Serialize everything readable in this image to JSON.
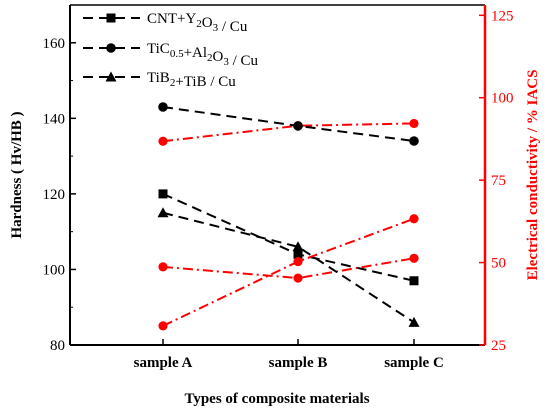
{
  "chart_data": {
    "type": "line",
    "categories": [
      "sample A",
      "sample B",
      "sample C"
    ],
    "xlabel": "Types of composite materials",
    "ylabel_left": "Hardness ( Hv/HB )",
    "ylabel_right": "Electrical conductivity / % IACS",
    "ylim_left": [
      80,
      170
    ],
    "yticks_left": [
      80,
      100,
      120,
      140,
      160
    ],
    "ylim_right": [
      25,
      128.125
    ],
    "yticks_right": [
      25,
      50,
      75,
      100,
      125
    ],
    "grid": false,
    "legend_position": "top-left",
    "colors": {
      "hardness": "#000000",
      "conductivity": "#ff0000",
      "right_axis": "#ff0000"
    },
    "series": [
      {
        "name": "CNT+Y2O3 / Cu",
        "legend_parts": [
          [
            "CNT+Y",
            ""
          ],
          [
            "2",
            "sub"
          ],
          [
            "O",
            ""
          ],
          [
            "3",
            "sub"
          ],
          [
            " / Cu",
            ""
          ]
        ],
        "marker": "square",
        "hardness": [
          120,
          104,
          97
        ],
        "conductivity": [
          86.8,
          91.5,
          92.2
        ]
      },
      {
        "name": "TiC0.5+Al2O3 / Cu",
        "legend_parts": [
          [
            "TiC",
            ""
          ],
          [
            "0.5",
            "sub"
          ],
          [
            "+Al",
            ""
          ],
          [
            "2",
            "sub"
          ],
          [
            "O",
            ""
          ],
          [
            "3",
            "sub"
          ],
          [
            " / Cu",
            ""
          ]
        ],
        "marker": "circle",
        "hardness": [
          143,
          138,
          134
        ],
        "conductivity": [
          48.7,
          45.3,
          51.3
        ]
      },
      {
        "name": "TiB2+TiB / Cu",
        "legend_parts": [
          [
            "TiB",
            ""
          ],
          [
            "2",
            "sub"
          ],
          [
            "+TiB / Cu",
            ""
          ]
        ],
        "marker": "triangle",
        "hardness": [
          115,
          106,
          86
        ],
        "conductivity": [
          30.8,
          50.3,
          63.3
        ]
      }
    ]
  }
}
